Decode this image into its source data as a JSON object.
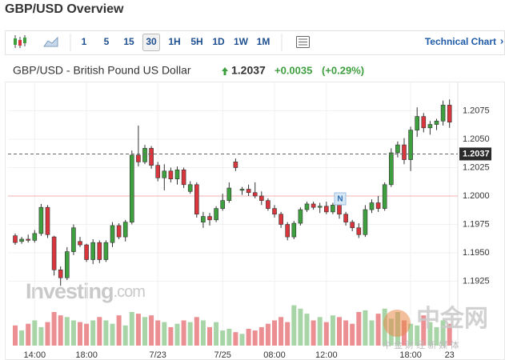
{
  "header": {
    "title": "GBP/USD Overview"
  },
  "toolbar": {
    "intervals": [
      "1",
      "5",
      "15",
      "30",
      "1H",
      "5H",
      "1D",
      "1W",
      "1M"
    ],
    "selected_index": 3,
    "link": "Technical Chart",
    "link_arrow": "›"
  },
  "quote": {
    "name": "GBP/USD - British Pound US Dollar",
    "price": 1.2037,
    "change": "+0.0035",
    "change_percent": "(+0.29%)"
  },
  "chart_data": {
    "type": "candlestick",
    "categories": [
      null,
      null,
      null,
      "14:00",
      null,
      null,
      null,
      null,
      null,
      null,
      null,
      "18:00",
      null,
      null,
      null,
      null,
      null,
      null,
      null,
      null,
      null,
      null,
      "7/23",
      null,
      null,
      null,
      null,
      null,
      null,
      null,
      null,
      null,
      "7/25",
      null,
      null,
      null,
      null,
      null,
      null,
      null,
      "08:00",
      null,
      null,
      null,
      null,
      null,
      null,
      null,
      "12:00",
      null,
      null,
      null,
      null,
      null,
      null,
      null,
      null,
      null,
      null,
      null,
      null,
      "18:00",
      null,
      null,
      null,
      null,
      null,
      "23"
    ],
    "open": [
      1.1965,
      1.196,
      1.1962,
      1.1961,
      1.1967,
      1.199,
      1.1964,
      1.1935,
      1.1928,
      1.1951,
      1.196,
      1.1957,
      1.1944,
      1.1959,
      1.1944,
      1.1959,
      1.1974,
      1.1964,
      1.1977,
      1.2036,
      1.203,
      1.2042,
      1.2027,
      1.2016,
      1.2022,
      1.2015,
      1.2023,
      1.2004,
      1.201,
      1.1977,
      1.1982,
      1.1979,
      1.1989,
      1.1996,
      1.203,
      1.2005,
      1.2006,
      1.2003,
      1.2,
      1.1996,
      1.1989,
      1.1984,
      1.1975,
      1.1964,
      1.1976,
      1.1988,
      1.1993,
      1.199,
      1.1991,
      1.1986,
      1.1992,
      1.1984,
      1.1977,
      1.1972,
      1.1966,
      1.1988,
      1.1994,
      1.1989,
      1.201,
      1.2038,
      1.2045,
      1.2032,
      1.2058,
      1.207,
      1.206,
      1.2063,
      1.2066,
      1.208
    ],
    "high": [
      1.1967,
      1.1964,
      1.1966,
      1.197,
      1.1993,
      1.1992,
      1.1965,
      1.1938,
      1.1955,
      1.1975,
      1.1964,
      1.1958,
      1.1962,
      1.1961,
      1.1961,
      1.1977,
      1.1976,
      1.1979,
      1.204,
      1.2062,
      1.2045,
      1.2044,
      1.203,
      1.2028,
      1.2025,
      1.2026,
      1.2025,
      1.2013,
      1.2012,
      1.1986,
      1.1985,
      1.1991,
      1.2002,
      1.2012,
      1.2033,
      1.2008,
      1.201,
      1.2012,
      1.2004,
      1.1998,
      1.1992,
      1.1986,
      1.1977,
      1.1978,
      1.199,
      1.1995,
      1.1995,
      1.1994,
      1.1995,
      1.1994,
      1.1994,
      1.1986,
      1.1979,
      1.1976,
      1.1992,
      1.1997,
      1.2,
      1.2012,
      1.2042,
      1.2048,
      1.2051,
      1.2061,
      1.2078,
      1.2073,
      1.2066,
      1.2068,
      1.2084,
      1.2085
    ],
    "low": [
      1.1957,
      1.1958,
      1.1959,
      1.1959,
      1.1965,
      1.1963,
      1.193,
      1.1921,
      1.1926,
      1.1948,
      1.1955,
      1.1942,
      1.194,
      1.1941,
      1.1942,
      1.1955,
      1.1962,
      1.196,
      1.1975,
      1.2026,
      1.2028,
      1.2024,
      1.2013,
      1.2005,
      1.2012,
      1.201,
      1.2007,
      1.2002,
      1.1981,
      1.1972,
      1.1974,
      1.1977,
      1.1987,
      1.1994,
      1.2022,
      1.2001,
      1.2,
      1.1998,
      1.1992,
      1.1987,
      1.1981,
      1.1972,
      1.1961,
      1.1962,
      1.1974,
      1.1986,
      1.1988,
      1.1985,
      1.1984,
      1.1984,
      1.198,
      1.1974,
      1.1969,
      1.1963,
      1.1964,
      1.1985,
      1.1986,
      1.1987,
      1.2008,
      1.2034,
      1.2028,
      1.2022,
      1.2052,
      1.2056,
      1.2054,
      1.2058,
      1.2062,
      1.206
    ],
    "close": [
      1.1959,
      1.1962,
      1.1961,
      1.1967,
      1.199,
      1.1966,
      1.1935,
      1.1928,
      1.1951,
      1.1972,
      1.1957,
      1.1944,
      1.1959,
      1.1944,
      1.1959,
      1.1974,
      1.1964,
      1.1977,
      1.2036,
      1.203,
      1.2042,
      1.2027,
      1.2016,
      1.2022,
      1.2015,
      1.2023,
      1.201,
      1.201,
      1.1984,
      1.1982,
      1.1979,
      1.1989,
      1.1996,
      1.2007,
      1.2025,
      1.2006,
      1.2003,
      1.2,
      1.1996,
      1.1989,
      1.1984,
      1.1975,
      1.1964,
      1.1976,
      1.1988,
      1.1993,
      1.199,
      1.1991,
      1.1986,
      1.1992,
      1.1984,
      1.1977,
      1.1972,
      1.1966,
      1.1988,
      1.1994,
      1.1989,
      1.201,
      1.2038,
      1.2045,
      1.2032,
      1.2058,
      1.207,
      1.206,
      1.2063,
      1.2066,
      1.208,
      1.2065
    ],
    "volume": [
      24,
      18,
      26,
      30,
      22,
      28,
      40,
      36,
      34,
      30,
      28,
      26,
      30,
      34,
      30,
      26,
      36,
      24,
      40,
      38,
      34,
      36,
      30,
      28,
      22,
      26,
      30,
      28,
      34,
      30,
      22,
      28,
      18,
      20,
      16,
      14,
      20,
      18,
      22,
      26,
      30,
      34,
      28,
      48,
      44,
      38,
      30,
      34,
      28,
      36,
      34,
      30,
      26,
      40,
      42,
      30,
      38,
      44,
      32,
      40,
      30,
      26,
      24,
      36,
      28,
      22,
      30,
      26
    ],
    "up_color": "#3e9f3e",
    "down_color": "#d8353c",
    "volume_up_color": "#a8d5a8",
    "volume_down_color": "#eb8f93",
    "ylim": [
      1.19,
      1.21
    ],
    "yticks": [
      1.1925,
      {
        "value": 1.195,
        "label": "1.1950"
      },
      1.1975,
      {
        "value": 1.2,
        "label": "1.2000"
      },
      1.2025,
      {
        "value": 1.205,
        "label": "1.2050"
      },
      1.2075
    ],
    "reference_level": 1.2,
    "news_marker": "N",
    "watermark": [
      "Investing",
      ".com"
    ],
    "grid": true
  },
  "overlay": {
    "name": "中金网",
    "subtitle": "中 金 财 经 新 媒 体"
  }
}
